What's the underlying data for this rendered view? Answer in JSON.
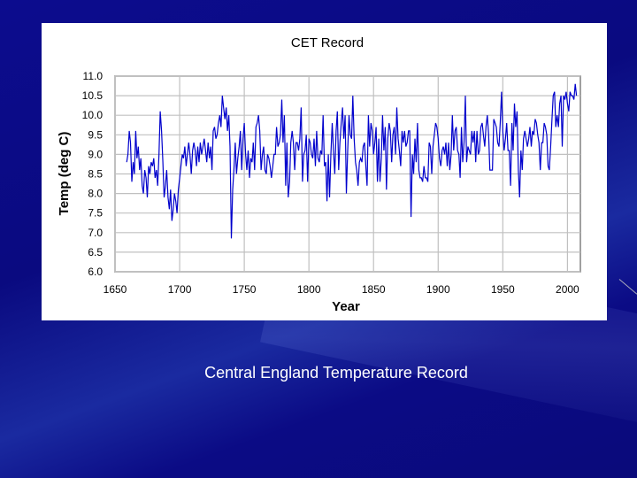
{
  "slide": {
    "caption": "Central England Temperature Record",
    "background_color": "#0a0a80"
  },
  "chart_data": {
    "type": "line",
    "title": "CET Record",
    "xlabel": "Year",
    "ylabel": "Temp (deg C)",
    "xlim": [
      1650,
      2010
    ],
    "ylim": [
      6.0,
      11.0
    ],
    "grid": true,
    "legend": "none",
    "line_color": "#0000cc",
    "xticks": [
      "1650",
      "1700",
      "1750",
      "1800",
      "1850",
      "1900",
      "1950",
      "2000"
    ],
    "yticks": [
      "6.0",
      "6.5",
      "7.0",
      "7.5",
      "8.0",
      "8.5",
      "9.0",
      "9.5",
      "10.0",
      "10.5",
      "11.0"
    ],
    "series": [
      {
        "x_start": 1659,
        "x_end": 2007,
        "values": [
          8.8,
          9.0,
          9.6,
          9.3,
          8.3,
          8.8,
          8.5,
          9.6,
          8.9,
          9.2,
          8.6,
          8.9,
          8.2,
          8.0,
          8.6,
          8.4,
          7.9,
          8.7,
          8.5,
          8.8,
          8.7,
          8.9,
          8.4,
          8.6,
          8.2,
          9.0,
          10.1,
          9.6,
          8.8,
          7.9,
          8.2,
          8.6,
          7.9,
          7.6,
          8.1,
          7.3,
          7.6,
          8.0,
          7.8,
          7.5,
          8.1,
          8.4,
          8.7,
          9.0,
          8.9,
          9.2,
          8.7,
          9.0,
          9.3,
          9.0,
          8.5,
          9.1,
          9.3,
          9.1,
          8.7,
          9.2,
          8.8,
          9.3,
          9.0,
          9.2,
          9.4,
          9.1,
          8.8,
          9.3,
          8.9,
          9.2,
          8.6,
          9.6,
          9.7,
          9.4,
          9.5,
          9.8,
          10.0,
          9.7,
          10.5,
          10.2,
          9.9,
          10.2,
          9.6,
          10.0,
          9.2,
          6.85,
          8.1,
          8.6,
          9.3,
          8.5,
          8.9,
          9.2,
          9.6,
          8.6,
          9.4,
          9.8,
          9.0,
          8.6,
          9.1,
          8.4,
          8.9,
          8.8,
          9.3,
          8.6,
          9.7,
          9.8,
          10.0,
          9.6,
          8.6,
          9.0,
          9.2,
          8.6,
          8.5,
          9.0,
          8.9,
          8.7,
          8.4,
          8.7,
          9.0,
          9.0,
          9.7,
          9.2,
          9.3,
          9.5,
          10.4,
          9.3,
          10.0,
          8.2,
          9.3,
          7.9,
          8.3,
          9.3,
          9.6,
          9.3,
          8.6,
          9.3,
          9.3,
          9.1,
          9.4,
          10.2,
          8.3,
          9.0,
          9.1,
          9.5,
          8.3,
          9.4,
          9.3,
          9.0,
          8.9,
          9.4,
          8.7,
          9.6,
          8.9,
          8.8,
          9.1,
          9.0,
          10.0,
          8.7,
          8.8,
          7.8,
          9.0,
          7.9,
          9.0,
          9.8,
          9.1,
          8.5,
          9.6,
          10.1,
          8.6,
          9.3,
          9.8,
          10.2,
          9.4,
          10.0,
          8.0,
          9.1,
          10.0,
          9.5,
          9.4,
          10.5,
          9.4,
          8.8,
          8.6,
          8.2,
          8.8,
          8.9,
          8.8,
          9.2,
          9.3,
          8.7,
          8.2,
          10.0,
          9.2,
          9.8,
          9.6,
          9.0,
          9.3,
          9.7,
          8.3,
          9.4,
          8.3,
          8.9,
          10.0,
          9.1,
          9.7,
          8.1,
          9.4,
          9.8,
          9.6,
          8.8,
          9.5,
          9.7,
          9.0,
          10.2,
          9.4,
          9.1,
          8.7,
          9.6,
          9.3,
          9.6,
          9.2,
          9.3,
          9.6,
          9.6,
          7.4,
          9.0,
          8.5,
          9.4,
          8.8,
          9.8,
          8.6,
          8.4,
          8.4,
          8.3,
          8.7,
          8.4,
          8.4,
          8.3,
          9.3,
          9.2,
          8.5,
          9.2,
          9.5,
          9.8,
          9.7,
          9.4,
          8.9,
          8.7,
          9.1,
          9.2,
          9.0,
          9.3,
          8.7,
          9.3,
          8.6,
          9.0,
          10.0,
          9.1,
          9.6,
          9.7,
          9.1,
          9.0,
          8.4,
          9.7,
          8.8,
          9.3,
          10.5,
          8.8,
          9.2,
          9.1,
          9.0,
          9.6,
          9.3,
          9.6,
          8.8,
          9.6,
          9.0,
          9.1,
          9.7,
          9.8,
          9.5,
          9.2,
          9.7,
          10.0,
          9.5,
          8.6,
          8.6,
          8.6,
          9.9,
          9.8,
          9.7,
          9.3,
          9.2,
          9.8,
          10.6,
          9.6,
          9.1,
          9.4,
          9.8,
          9.1,
          9.1,
          8.2,
          9.8,
          9.1,
          10.3,
          9.7,
          10.1,
          8.6,
          7.9,
          9.1,
          8.6,
          9.4,
          9.6,
          9.4,
          9.2,
          9.4,
          9.7,
          9.2,
          9.6,
          9.5,
          9.9,
          9.8,
          9.5,
          9.3,
          8.6,
          9.3,
          9.3,
          9.8,
          9.7,
          9.5,
          8.7,
          8.6,
          9.2,
          9.9,
          10.5,
          10.6,
          9.7,
          10.0,
          9.7,
          10.3,
          10.5,
          9.2,
          10.5,
          10.4,
          10.6,
          10.3,
          10.1,
          10.6,
          10.5,
          10.5,
          10.4,
          10.8,
          10.5
        ]
      }
    ]
  }
}
